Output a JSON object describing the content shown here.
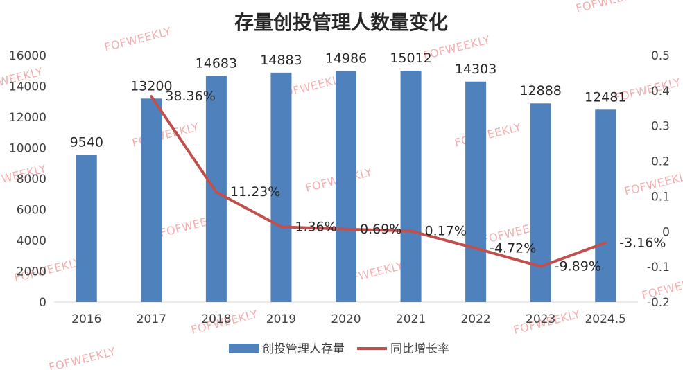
{
  "chart_data": {
    "type": "bar",
    "title": "存量创投管理人数量变化",
    "categories": [
      "2016",
      "2017",
      "2018",
      "2019",
      "2020",
      "2021",
      "2022",
      "2023",
      "2024.5"
    ],
    "series": [
      {
        "name": "创投管理人存量",
        "type": "bar",
        "axis": "left",
        "color": "#4f81bd",
        "values": [
          9540,
          13200,
          14683,
          14883,
          14986,
          15012,
          14303,
          12888,
          12481
        ],
        "labels": [
          "9540",
          "13200",
          "14683",
          "14883",
          "14986",
          "15012",
          "14303",
          "12888",
          "12481"
        ]
      },
      {
        "name": "同比增长率",
        "type": "line",
        "axis": "right",
        "color": "#c0504d",
        "values": [
          null,
          0.3836,
          0.1123,
          0.0136,
          0.0069,
          0.0017,
          -0.0472,
          -0.0989,
          -0.0316
        ],
        "labels": [
          "",
          "38.36%",
          "11.23%",
          "1.36%",
          "0.69%",
          "0.17%",
          "-4.72%",
          "-9.89%",
          "-3.16%"
        ]
      }
    ],
    "y_left": {
      "min": 0,
      "max": 16000,
      "ticks": [
        "0",
        "2000",
        "4000",
        "6000",
        "8000",
        "10000",
        "12000",
        "14000",
        "16000"
      ]
    },
    "y_right": {
      "min": -0.2,
      "max": 0.5,
      "ticks": [
        "-0.2",
        "-0.1",
        "0",
        "0.1",
        "0.2",
        "0.3",
        "0.4",
        "0.5"
      ]
    },
    "grid": false,
    "legend_position": "bottom",
    "watermark": "FOFWEEKLY"
  }
}
